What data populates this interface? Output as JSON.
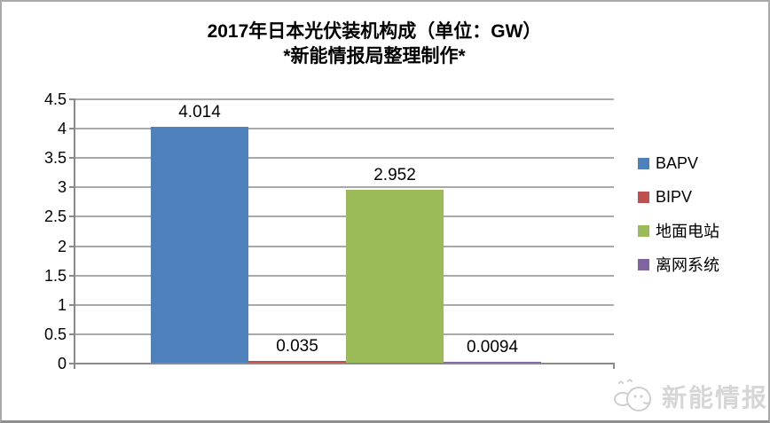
{
  "title": {
    "line1": "2017年日本光伏装机构成（单位：GW）",
    "line2": "*新能情报局整理制作*"
  },
  "chart_data": {
    "type": "bar",
    "title": "2017年日本光伏装机构成（单位：GW）",
    "subtitle": "*新能情报局整理制作*",
    "unit": "GW",
    "categories": [
      "BAPV",
      "BIPV",
      "地面电站",
      "离网系统"
    ],
    "values": [
      4.014,
      0.035,
      2.952,
      0.0094
    ],
    "value_labels": [
      "4.014",
      "0.035",
      "2.952",
      "0.0094"
    ],
    "bar_colors": [
      "#4E81BC",
      "#C0504D",
      "#9BBB59",
      "#8064A2"
    ],
    "ylim": [
      0,
      4.5
    ],
    "ytick_step": 0.5,
    "ytick_labels": [
      "0",
      "0.5",
      "1",
      "1.5",
      "2",
      "2.5",
      "3",
      "3.5",
      "4",
      "4.5"
    ],
    "grid": true,
    "legend_position": "right",
    "legend": [
      {
        "label": "BAPV",
        "color": "#4E81BC"
      },
      {
        "label": "BIPV",
        "color": "#C0504D"
      },
      {
        "label": "地面电站",
        "color": "#9BBB59"
      },
      {
        "label": "离网系统",
        "color": "#8064A2"
      }
    ]
  },
  "watermark": {
    "text": "新能情报局",
    "icon": "mascot-chick-icon"
  },
  "colors": {
    "grid": "#a9a9a9",
    "axis": "#8a8a8a",
    "text": "#000000",
    "watermark_text": "#d6d6d6",
    "frame_border": "#a9a9a9",
    "background": "#ffffff"
  }
}
